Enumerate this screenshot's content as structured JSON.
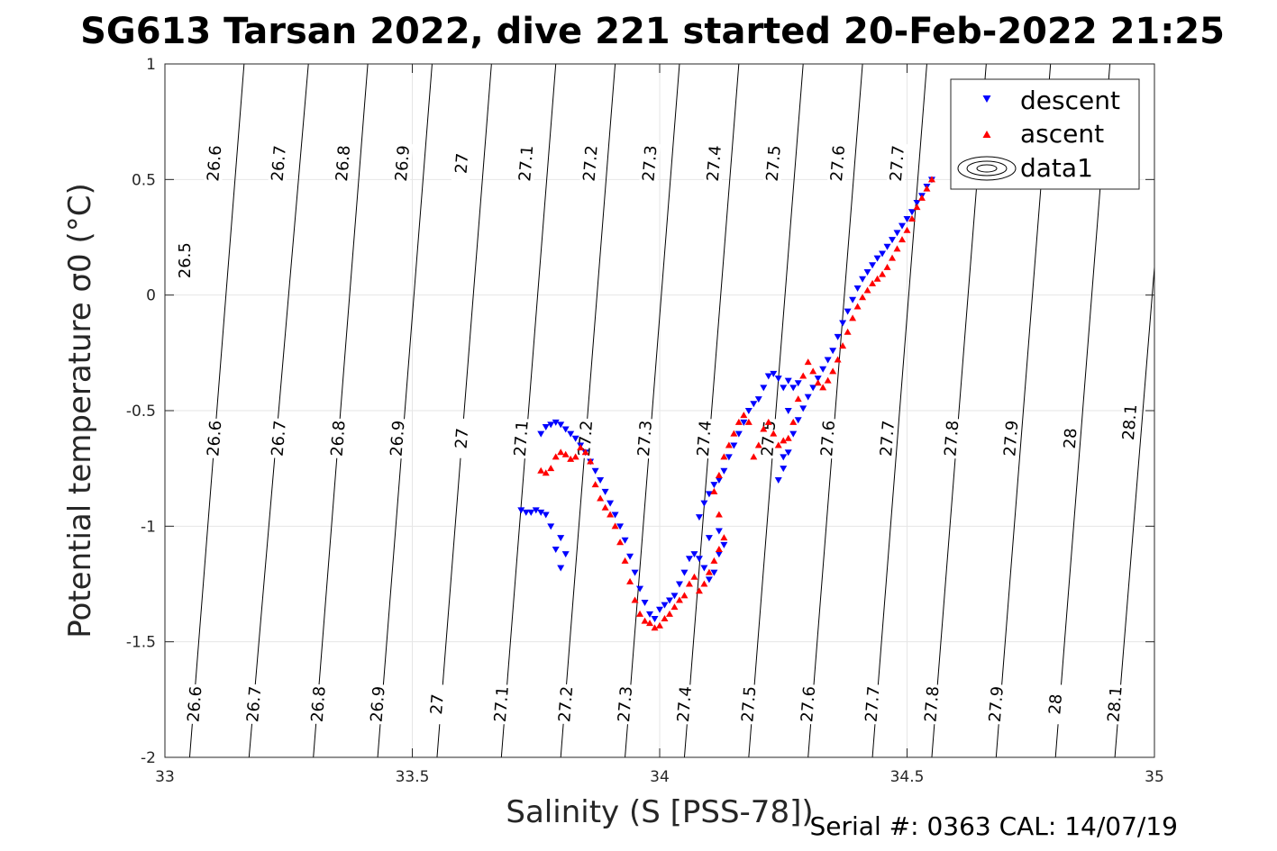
{
  "chart_data": {
    "type": "scatter",
    "title": "SG613 Tarsan 2022, dive 221 started 20-Feb-2022 21:25",
    "xlabel": "Salinity (S [PSS-78])",
    "ylabel": "Potential temperature σ0 (°C)",
    "xlim": [
      33,
      35
    ],
    "ylim": [
      -2,
      1
    ],
    "xticks": [
      33,
      33.5,
      34,
      34.5,
      35
    ],
    "xtick_labels": [
      "33",
      "33.5",
      "34",
      "34.5",
      "35"
    ],
    "yticks": [
      1,
      0.5,
      0,
      -0.5,
      -1,
      -1.5,
      -2
    ],
    "ytick_labels": [
      "1",
      "0.5",
      "0",
      "-0.5",
      "-1",
      "-1.5",
      "-2"
    ],
    "grid": true,
    "legend_position": "top-right",
    "footer": "Serial #: 0363  CAL: 14/07/19",
    "contours": {
      "label": "data1",
      "levels": [
        26.5,
        26.6,
        26.7,
        26.8,
        26.9,
        27,
        27.1,
        27.2,
        27.3,
        27.4,
        27.5,
        27.6,
        27.7,
        27.8,
        27.9,
        28,
        28.1
      ],
      "level_labels": [
        "26.5",
        "26.6",
        "26.7",
        "26.8",
        "26.9",
        "27",
        "27.1",
        "27.2",
        "27.3",
        "27.4",
        "27.5",
        "27.6",
        "27.7",
        "27.8",
        "27.9",
        "28",
        "28.1"
      ],
      "lines": [
        {
          "level": 26.5,
          "top": 33.0,
          "bottom": null,
          "cut": -0.18,
          "labels": [
            [
              33.04,
              0.15
            ]
          ]
        },
        {
          "level": 26.6,
          "top": 33.16,
          "bottom": 33.05,
          "labels": [
            [
              33.1,
              0.57
            ],
            [
              33.1,
              -0.62
            ],
            [
              33.06,
              -1.77
            ]
          ]
        },
        {
          "level": 26.7,
          "top": 33.29,
          "bottom": 33.17,
          "labels": [
            [
              33.23,
              0.57
            ],
            [
              33.23,
              -0.62
            ],
            [
              33.18,
              -1.77
            ]
          ]
        },
        {
          "level": 26.8,
          "top": 33.41,
          "bottom": 33.3,
          "labels": [
            [
              33.36,
              0.57
            ],
            [
              33.35,
              -0.62
            ],
            [
              33.31,
              -1.77
            ]
          ]
        },
        {
          "level": 26.9,
          "top": 33.54,
          "bottom": 33.43,
          "labels": [
            [
              33.48,
              0.57
            ],
            [
              33.47,
              -0.62
            ],
            [
              33.43,
              -1.77
            ]
          ]
        },
        {
          "level": 27.0,
          "top": 33.66,
          "bottom": 33.55,
          "labels": [
            [
              33.6,
              0.57
            ],
            [
              33.6,
              -0.62
            ],
            [
              33.55,
              -1.77
            ]
          ]
        },
        {
          "level": 27.1,
          "top": 33.79,
          "bottom": 33.68,
          "labels": [
            [
              33.73,
              0.57
            ],
            [
              33.72,
              -0.62
            ],
            [
              33.68,
              -1.77
            ]
          ]
        },
        {
          "level": 27.2,
          "top": 33.91,
          "bottom": 33.8,
          "labels": [
            [
              33.86,
              0.57
            ],
            [
              33.85,
              -0.62
            ],
            [
              33.81,
              -1.77
            ]
          ]
        },
        {
          "level": 27.3,
          "top": 34.04,
          "bottom": 33.93,
          "labels": [
            [
              33.98,
              0.57
            ],
            [
              33.97,
              -0.62
            ],
            [
              33.93,
              -1.77
            ]
          ]
        },
        {
          "level": 27.4,
          "top": 34.16,
          "bottom": 34.05,
          "labels": [
            [
              34.11,
              0.57
            ],
            [
              34.09,
              -0.62
            ],
            [
              34.05,
              -1.77
            ]
          ]
        },
        {
          "level": 27.5,
          "top": 34.29,
          "bottom": 34.18,
          "labels": [
            [
              34.23,
              0.57
            ],
            [
              34.22,
              -0.62
            ],
            [
              34.18,
              -1.77
            ]
          ]
        },
        {
          "level": 27.6,
          "top": 34.41,
          "bottom": 34.3,
          "labels": [
            [
              34.36,
              0.57
            ],
            [
              34.34,
              -0.62
            ],
            [
              34.3,
              -1.77
            ]
          ]
        },
        {
          "level": 27.7,
          "top": 34.54,
          "bottom": 34.43,
          "labels": [
            [
              34.48,
              0.57
            ],
            [
              34.46,
              -0.62
            ],
            [
              34.43,
              -1.77
            ]
          ]
        },
        {
          "level": 27.8,
          "top": 34.66,
          "bottom": 34.55,
          "labels": [
            [
              34.59,
              -0.62
            ],
            [
              34.55,
              -1.77
            ]
          ]
        },
        {
          "level": 27.9,
          "top": 34.79,
          "bottom": 34.68,
          "labels": [
            [
              34.71,
              -0.62
            ],
            [
              34.68,
              -1.77
            ]
          ]
        },
        {
          "level": 28.0,
          "top": 34.91,
          "bottom": 34.8,
          "labels": [
            [
              34.83,
              -0.62
            ],
            [
              34.8,
              -1.77
            ]
          ]
        },
        {
          "level": 28.1,
          "top": null,
          "cut": 0.12,
          "bottom": 34.92,
          "labels": [
            [
              34.95,
              -0.55
            ],
            [
              34.92,
              -1.77
            ]
          ]
        }
      ]
    },
    "series": [
      {
        "name": "descent",
        "color": "#0000ff",
        "marker": "triangle-down",
        "points": [
          [
            34.55,
            0.5
          ],
          [
            34.54,
            0.47
          ],
          [
            34.53,
            0.43
          ],
          [
            34.52,
            0.4
          ],
          [
            34.51,
            0.36
          ],
          [
            34.5,
            0.33
          ],
          [
            34.49,
            0.3
          ],
          [
            34.48,
            0.27
          ],
          [
            34.47,
            0.24
          ],
          [
            34.46,
            0.21
          ],
          [
            34.45,
            0.18
          ],
          [
            34.44,
            0.16
          ],
          [
            34.43,
            0.13
          ],
          [
            34.42,
            0.1
          ],
          [
            34.41,
            0.07
          ],
          [
            34.4,
            0.03
          ],
          [
            34.39,
            -0.02
          ],
          [
            34.38,
            -0.07
          ],
          [
            34.37,
            -0.12
          ],
          [
            34.36,
            -0.18
          ],
          [
            34.35,
            -0.24
          ],
          [
            34.34,
            -0.28
          ],
          [
            34.33,
            -0.32
          ],
          [
            34.32,
            -0.36
          ],
          [
            34.31,
            -0.4
          ],
          [
            34.3,
            -0.44
          ],
          [
            34.29,
            -0.49
          ],
          [
            34.28,
            -0.54
          ],
          [
            34.27,
            -0.6
          ],
          [
            34.26,
            -0.68
          ],
          [
            34.25,
            -0.75
          ],
          [
            34.24,
            -0.8
          ],
          [
            34.25,
            -0.7
          ],
          [
            34.26,
            -0.5
          ],
          [
            34.27,
            -0.4
          ],
          [
            34.28,
            -0.38
          ],
          [
            34.26,
            -0.37
          ],
          [
            34.25,
            -0.4
          ],
          [
            34.24,
            -0.36
          ],
          [
            34.23,
            -0.34
          ],
          [
            34.22,
            -0.35
          ],
          [
            34.21,
            -0.4
          ],
          [
            34.2,
            -0.45
          ],
          [
            34.19,
            -0.47
          ],
          [
            34.18,
            -0.5
          ],
          [
            34.17,
            -0.55
          ],
          [
            34.16,
            -0.6
          ],
          [
            34.15,
            -0.65
          ],
          [
            34.14,
            -0.7
          ],
          [
            34.13,
            -0.76
          ],
          [
            34.12,
            -0.8
          ],
          [
            34.11,
            -0.82
          ],
          [
            34.1,
            -0.86
          ],
          [
            34.09,
            -0.9
          ],
          [
            34.08,
            -0.96
          ],
          [
            34.1,
            -1.05
          ],
          [
            34.12,
            -1.02
          ],
          [
            34.13,
            -1.08
          ],
          [
            34.12,
            -1.12
          ],
          [
            34.11,
            -1.2
          ],
          [
            34.1,
            -1.23
          ],
          [
            34.09,
            -1.18
          ],
          [
            34.08,
            -1.14
          ],
          [
            34.07,
            -1.12
          ],
          [
            34.06,
            -1.14
          ],
          [
            34.05,
            -1.2
          ],
          [
            34.04,
            -1.25
          ],
          [
            34.03,
            -1.3
          ],
          [
            34.02,
            -1.32
          ],
          [
            34.01,
            -1.34
          ],
          [
            34.0,
            -1.36
          ],
          [
            33.99,
            -1.4
          ],
          [
            33.98,
            -1.38
          ],
          [
            33.97,
            -1.33
          ],
          [
            33.96,
            -1.27
          ],
          [
            33.95,
            -1.2
          ],
          [
            33.94,
            -1.13
          ],
          [
            33.93,
            -1.06
          ],
          [
            33.92,
            -1.0
          ],
          [
            33.91,
            -0.95
          ],
          [
            33.9,
            -0.9
          ],
          [
            33.89,
            -0.85
          ],
          [
            33.88,
            -0.8
          ],
          [
            33.87,
            -0.76
          ],
          [
            33.86,
            -0.72
          ],
          [
            33.85,
            -0.68
          ],
          [
            33.84,
            -0.65
          ],
          [
            33.83,
            -0.62
          ],
          [
            33.82,
            -0.6
          ],
          [
            33.81,
            -0.58
          ],
          [
            33.8,
            -0.56
          ],
          [
            33.79,
            -0.55
          ],
          [
            33.78,
            -0.56
          ],
          [
            33.77,
            -0.57
          ],
          [
            33.76,
            -0.6
          ],
          [
            33.8,
            -1.05
          ],
          [
            33.81,
            -1.12
          ],
          [
            33.8,
            -1.18
          ],
          [
            33.79,
            -1.1
          ],
          [
            33.78,
            -1.0
          ],
          [
            33.77,
            -0.95
          ],
          [
            33.76,
            -0.94
          ],
          [
            33.75,
            -0.93
          ],
          [
            33.74,
            -0.94
          ],
          [
            33.73,
            -0.94
          ],
          [
            33.72,
            -0.93
          ]
        ]
      },
      {
        "name": "ascent",
        "color": "#ff0000",
        "marker": "triangle-up",
        "points": [
          [
            34.55,
            0.5
          ],
          [
            34.54,
            0.46
          ],
          [
            34.53,
            0.42
          ],
          [
            34.52,
            0.38
          ],
          [
            34.51,
            0.33
          ],
          [
            34.5,
            0.28
          ],
          [
            34.49,
            0.24
          ],
          [
            34.48,
            0.2
          ],
          [
            34.47,
            0.16
          ],
          [
            34.46,
            0.12
          ],
          [
            34.45,
            0.09
          ],
          [
            34.44,
            0.07
          ],
          [
            34.43,
            0.05
          ],
          [
            34.42,
            0.02
          ],
          [
            34.41,
            -0.01
          ],
          [
            34.4,
            -0.05
          ],
          [
            34.39,
            -0.1
          ],
          [
            34.38,
            -0.16
          ],
          [
            34.37,
            -0.22
          ],
          [
            34.36,
            -0.28
          ],
          [
            34.35,
            -0.33
          ],
          [
            34.34,
            -0.37
          ],
          [
            34.33,
            -0.4
          ],
          [
            34.32,
            -0.38
          ],
          [
            34.31,
            -0.33
          ],
          [
            34.3,
            -0.29
          ],
          [
            34.29,
            -0.35
          ],
          [
            34.28,
            -0.45
          ],
          [
            34.27,
            -0.55
          ],
          [
            34.26,
            -0.62
          ],
          [
            34.25,
            -0.63
          ],
          [
            34.24,
            -0.65
          ],
          [
            34.23,
            -0.6
          ],
          [
            34.22,
            -0.55
          ],
          [
            34.21,
            -0.58
          ],
          [
            34.2,
            -0.65
          ],
          [
            34.19,
            -0.7
          ],
          [
            34.18,
            -0.55
          ],
          [
            34.17,
            -0.52
          ],
          [
            34.16,
            -0.55
          ],
          [
            34.15,
            -0.6
          ],
          [
            34.14,
            -0.65
          ],
          [
            34.13,
            -0.7
          ],
          [
            34.12,
            -0.78
          ],
          [
            34.11,
            -0.85
          ],
          [
            34.12,
            -0.95
          ],
          [
            34.13,
            -1.05
          ],
          [
            34.12,
            -1.1
          ],
          [
            34.11,
            -1.15
          ],
          [
            34.1,
            -1.2
          ],
          [
            34.09,
            -1.25
          ],
          [
            34.08,
            -1.28
          ],
          [
            34.07,
            -1.22
          ],
          [
            34.06,
            -1.25
          ],
          [
            34.05,
            -1.3
          ],
          [
            34.04,
            -1.32
          ],
          [
            34.03,
            -1.35
          ],
          [
            34.02,
            -1.38
          ],
          [
            34.01,
            -1.4
          ],
          [
            34.0,
            -1.43
          ],
          [
            33.99,
            -1.44
          ],
          [
            33.98,
            -1.42
          ],
          [
            33.97,
            -1.41
          ],
          [
            33.96,
            -1.38
          ],
          [
            33.95,
            -1.32
          ],
          [
            33.94,
            -1.24
          ],
          [
            33.93,
            -1.15
          ],
          [
            33.92,
            -1.07
          ],
          [
            33.91,
            -1.0
          ],
          [
            33.9,
            -0.95
          ],
          [
            33.89,
            -0.92
          ],
          [
            33.88,
            -0.88
          ],
          [
            33.87,
            -0.82
          ],
          [
            33.86,
            -0.72
          ],
          [
            33.85,
            -0.68
          ],
          [
            33.84,
            -0.66
          ],
          [
            33.83,
            -0.7
          ],
          [
            33.82,
            -0.71
          ],
          [
            33.81,
            -0.69
          ],
          [
            33.8,
            -0.68
          ],
          [
            33.79,
            -0.7
          ],
          [
            33.78,
            -0.75
          ],
          [
            33.77,
            -0.77
          ],
          [
            33.76,
            -0.76
          ]
        ]
      }
    ]
  }
}
